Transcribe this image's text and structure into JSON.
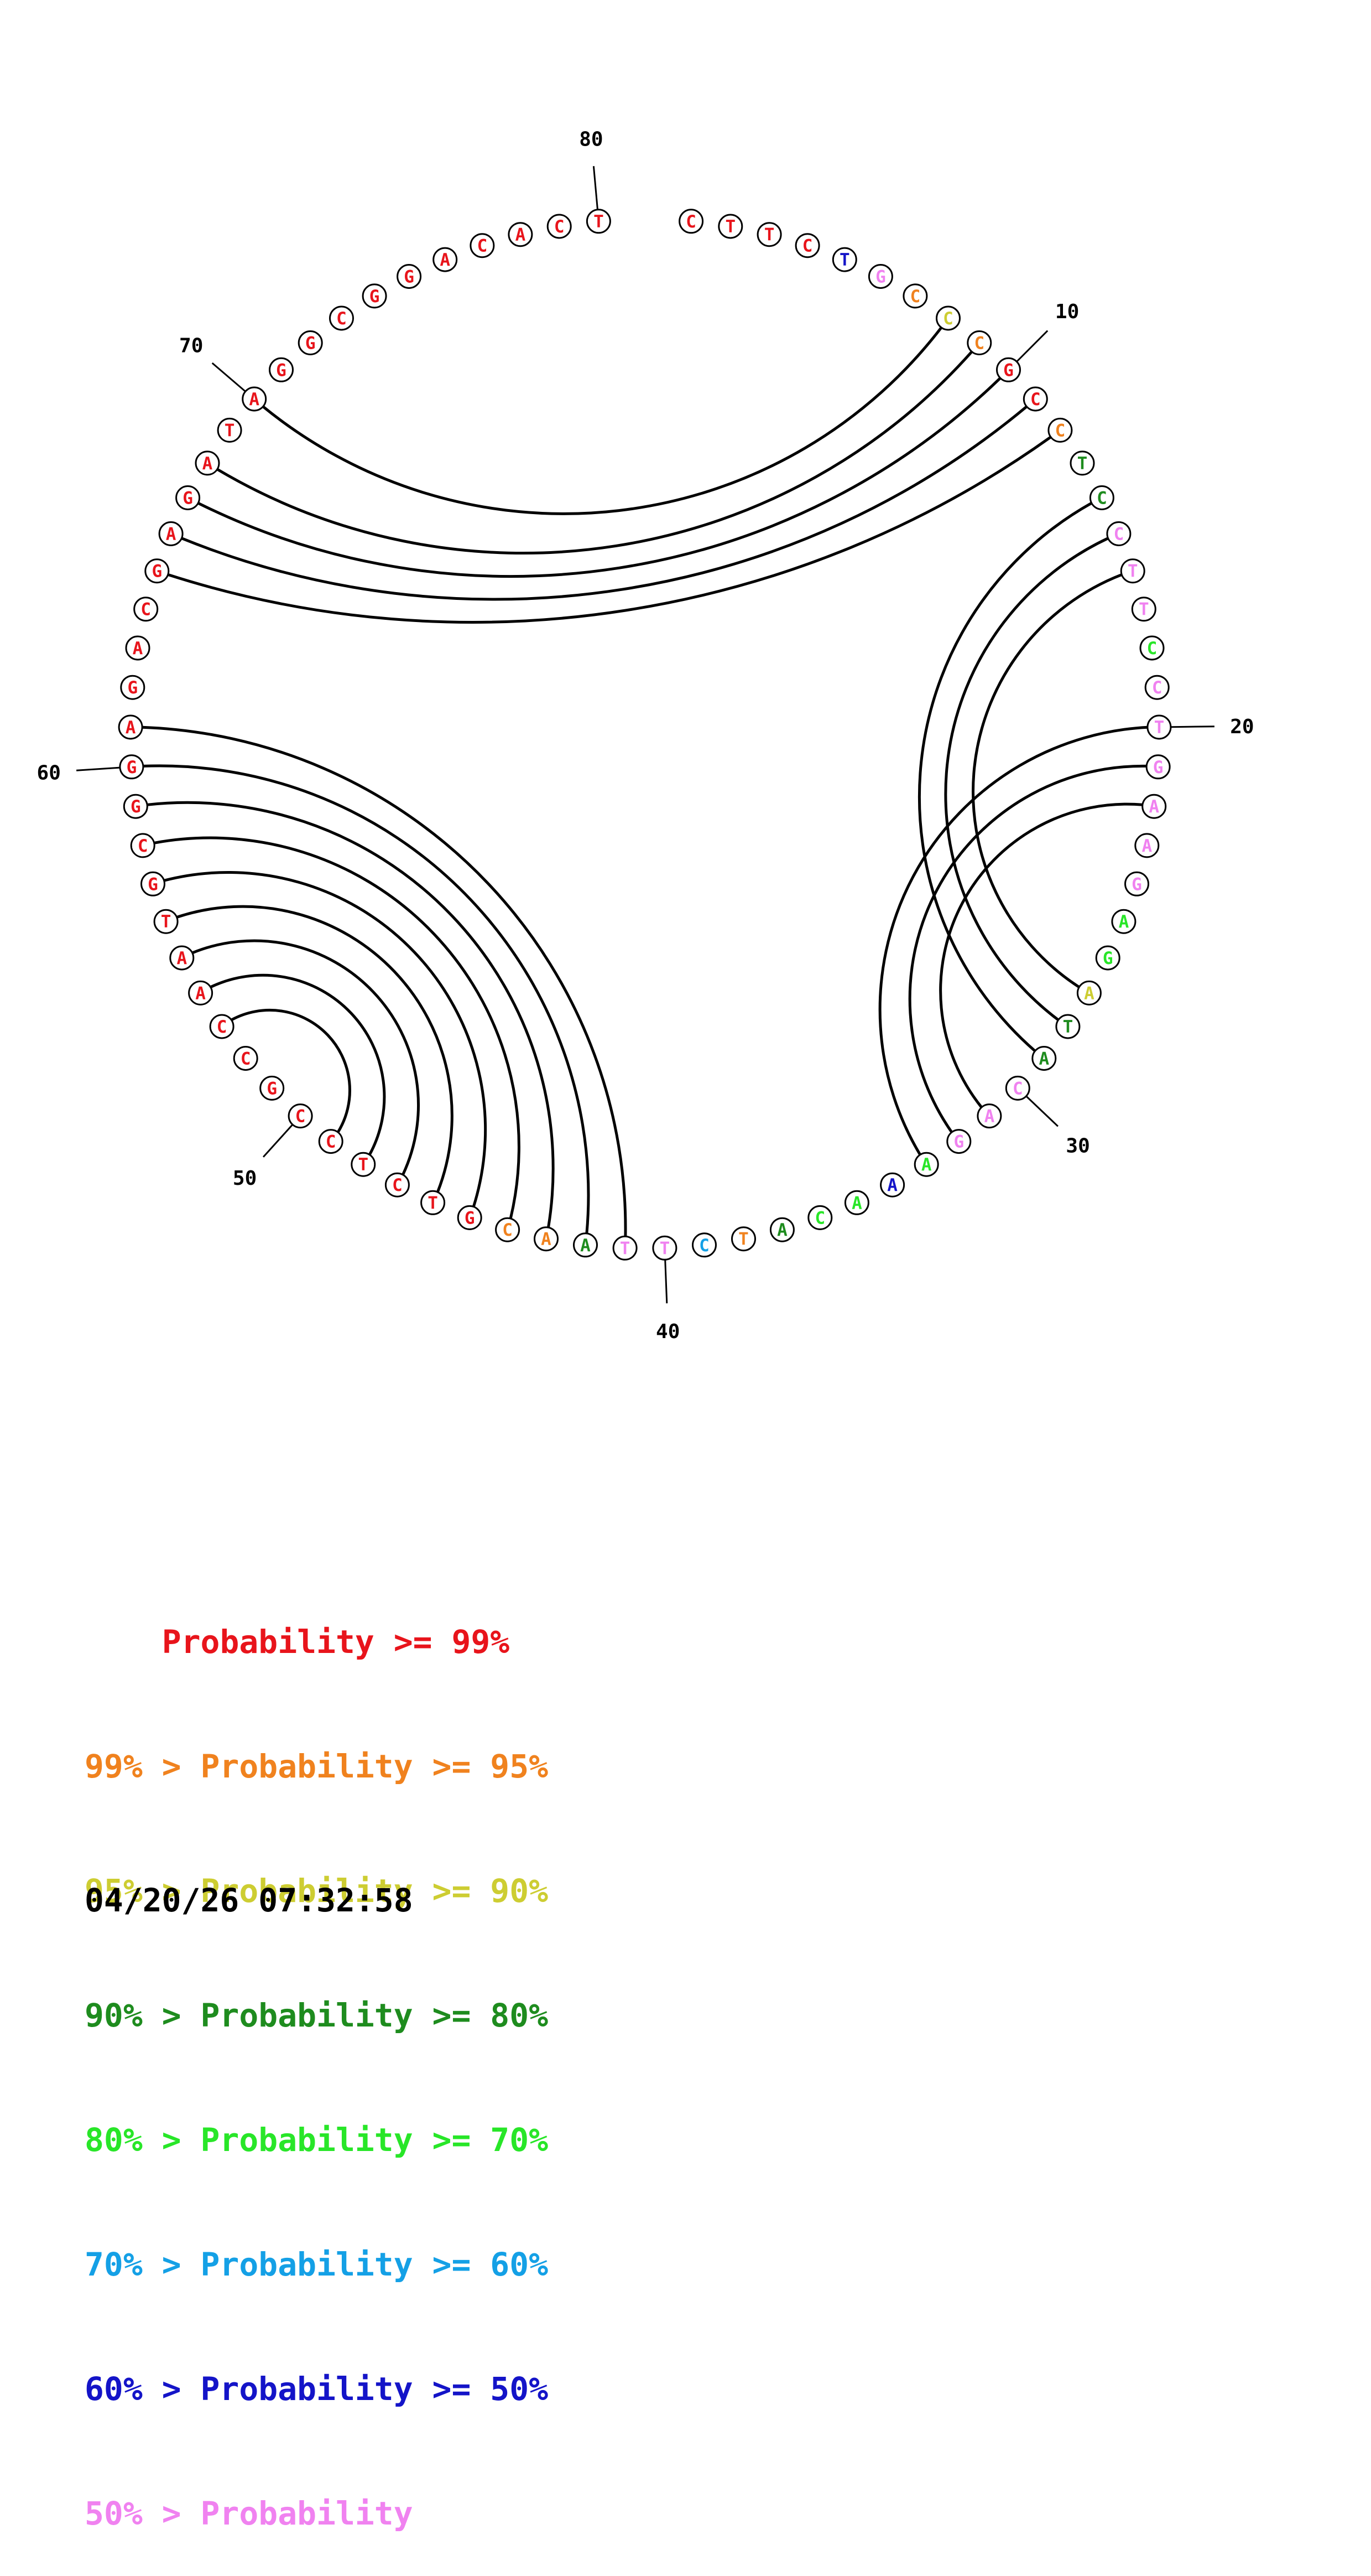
{
  "sequence": [
    "C",
    "T",
    "T",
    "C",
    "T",
    "G",
    "C",
    "C",
    "C",
    "G",
    "C",
    "C",
    "T",
    "C",
    "C",
    "T",
    "T",
    "C",
    "C",
    "T",
    "G",
    "A",
    "A",
    "G",
    "A",
    "G",
    "A",
    "T",
    "A",
    "C",
    "A",
    "G",
    "A",
    "A",
    "A",
    "C",
    "A",
    "T",
    "C",
    "T",
    "T",
    "A",
    "A",
    "C",
    "G",
    "T",
    "C",
    "T",
    "C",
    "C",
    "G",
    "C",
    "C",
    "A",
    "A",
    "T",
    "G",
    "C",
    "G",
    "G",
    "A",
    "G",
    "A",
    "C",
    "G",
    "A",
    "G",
    "A",
    "T",
    "A",
    "G",
    "G",
    "C",
    "G",
    "G",
    "A",
    "C",
    "A",
    "C",
    "T"
  ],
  "nucleotide_colors": [
    "red",
    "red",
    "red",
    "red",
    "blue",
    "pink",
    "orange",
    "yellow",
    "orange",
    "red",
    "red",
    "orange",
    "darkgreen",
    "darkgreen",
    "pink",
    "pink",
    "pink",
    "green",
    "pink",
    "pink",
    "pink",
    "pink",
    "pink",
    "pink",
    "green",
    "green",
    "yellow",
    "darkgreen",
    "darkgreen",
    "pink",
    "pink",
    "pink",
    "green",
    "blue",
    "green",
    "green",
    "darkgreen",
    "orange",
    "cyan",
    "pink",
    "pink",
    "darkgreen",
    "orange",
    "orange",
    "red",
    "red",
    "red",
    "red",
    "red",
    "red",
    "red",
    "red",
    "red",
    "red",
    "red",
    "red",
    "red",
    "red",
    "red",
    "red",
    "red",
    "red",
    "red",
    "red",
    "red",
    "red",
    "red",
    "red",
    "red",
    "red",
    "red",
    "red",
    "red",
    "red",
    "red",
    "red",
    "red",
    "red",
    "red",
    "red"
  ],
  "pairs": [
    [
      8,
      70
    ],
    [
      9,
      68
    ],
    [
      10,
      67
    ],
    [
      11,
      66
    ],
    [
      12,
      65
    ],
    [
      14,
      29
    ],
    [
      15,
      28
    ],
    [
      16,
      27
    ],
    [
      20,
      33
    ],
    [
      21,
      32
    ],
    [
      22,
      31
    ],
    [
      41,
      61
    ],
    [
      42,
      60
    ],
    [
      43,
      59
    ],
    [
      44,
      58
    ],
    [
      45,
      57
    ],
    [
      46,
      56
    ],
    [
      47,
      55
    ],
    [
      48,
      54
    ],
    [
      49,
      53
    ]
  ],
  "position_labels": [
    {
      "index": 10,
      "text": "10"
    },
    {
      "index": 20,
      "text": "20"
    },
    {
      "index": 30,
      "text": "30"
    },
    {
      "index": 40,
      "text": "40"
    },
    {
      "index": 50,
      "text": "50"
    },
    {
      "index": 60,
      "text": "60"
    },
    {
      "index": 70,
      "text": "70"
    },
    {
      "index": 80,
      "text": "80"
    }
  ],
  "colors": {
    "red": "#e8141b",
    "orange": "#f0821e",
    "yellow": "#cdcd32",
    "darkgreen": "#1e8c1e",
    "green": "#28e628",
    "cyan": "#14a0e6",
    "blue": "#1414c8",
    "pink": "#f082f0",
    "black": "#000000"
  },
  "legend": [
    {
      "prefix": "    ",
      "label": "Probability >= 99%",
      "color": "#e8141b"
    },
    {
      "prefix": "99% > ",
      "label": "Probability >= 95%",
      "color": "#f0821e"
    },
    {
      "prefix": "95% > ",
      "label": "Probability >= 90%",
      "color": "#cdcd32"
    },
    {
      "prefix": "90% > ",
      "label": "Probability >= 80%",
      "color": "#1e8c1e"
    },
    {
      "prefix": "80% > ",
      "label": "Probability >= 70%",
      "color": "#28e628"
    },
    {
      "prefix": "70% > ",
      "label": "Probability >= 60%",
      "color": "#14a0e6"
    },
    {
      "prefix": "60% > ",
      "label": "Probability >= 50%",
      "color": "#1414c8"
    },
    {
      "prefix": "50% > ",
      "label": "Probability",
      "color": "#f082f0"
    }
  ],
  "timestamp": "04/20/26 07:32:58"
}
